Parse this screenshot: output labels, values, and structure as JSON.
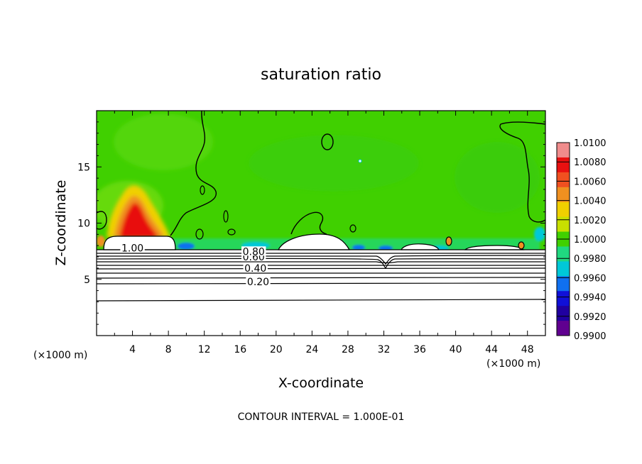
{
  "chart_data": {
    "type": "heatmap",
    "title": "saturation ratio",
    "xlabel": "X-coordinate",
    "ylabel": "Z-coordinate",
    "x_unit_left": "(×1000 m)",
    "x_unit_right": "(×1000 m)",
    "footer": "CONTOUR INTERVAL = 1.000E-01",
    "xlim": [
      0,
      50
    ],
    "ylim": [
      0,
      20
    ],
    "x_ticks": [
      4,
      8,
      12,
      16,
      20,
      24,
      28,
      32,
      36,
      40,
      44,
      48
    ],
    "x_tick_labels": [
      "4",
      "8",
      "12",
      "16",
      "20",
      "24",
      "28",
      "32",
      "36",
      "40",
      "44",
      "48"
    ],
    "y_ticks": [
      5,
      10,
      15
    ],
    "y_tick_labels": [
      "5",
      "10",
      "15"
    ],
    "colorbar": {
      "min": 0.99,
      "max": 1.01,
      "labels": [
        "1.0100",
        "1.0080",
        "1.0060",
        "1.0040",
        "1.0020",
        "1.0000",
        "0.9980",
        "0.9960",
        "0.9940",
        "0.9920",
        "0.9900"
      ],
      "colors": [
        "#f08c8c",
        "#e81010",
        "#f05020",
        "#f09020",
        "#f0d000",
        "#c8e000",
        "#40d000",
        "#20d880",
        "#00c8d8",
        "#1070f0",
        "#1010d8",
        "#2000a0",
        "#600090"
      ]
    },
    "contour_lines": [
      {
        "level": 0.2,
        "label": "0.20",
        "label_x": 18,
        "label_z": 4.6
      },
      {
        "level": 0.4,
        "label": "0.40",
        "label_x": 17.7,
        "label_z": 5.8
      },
      {
        "level": 0.6,
        "label": "0.60",
        "label_x": 17.5,
        "label_z": 6.8
      },
      {
        "level": 0.8,
        "label": "0.80",
        "label_x": 17.5,
        "label_z": 7.3
      },
      {
        "level": 1.0,
        "label": "1.00",
        "label_x": 4.0,
        "label_z": 7.6
      }
    ],
    "annotations": [
      "0.20",
      "0.40",
      "0.60",
      "0.80",
      "1.00"
    ]
  }
}
